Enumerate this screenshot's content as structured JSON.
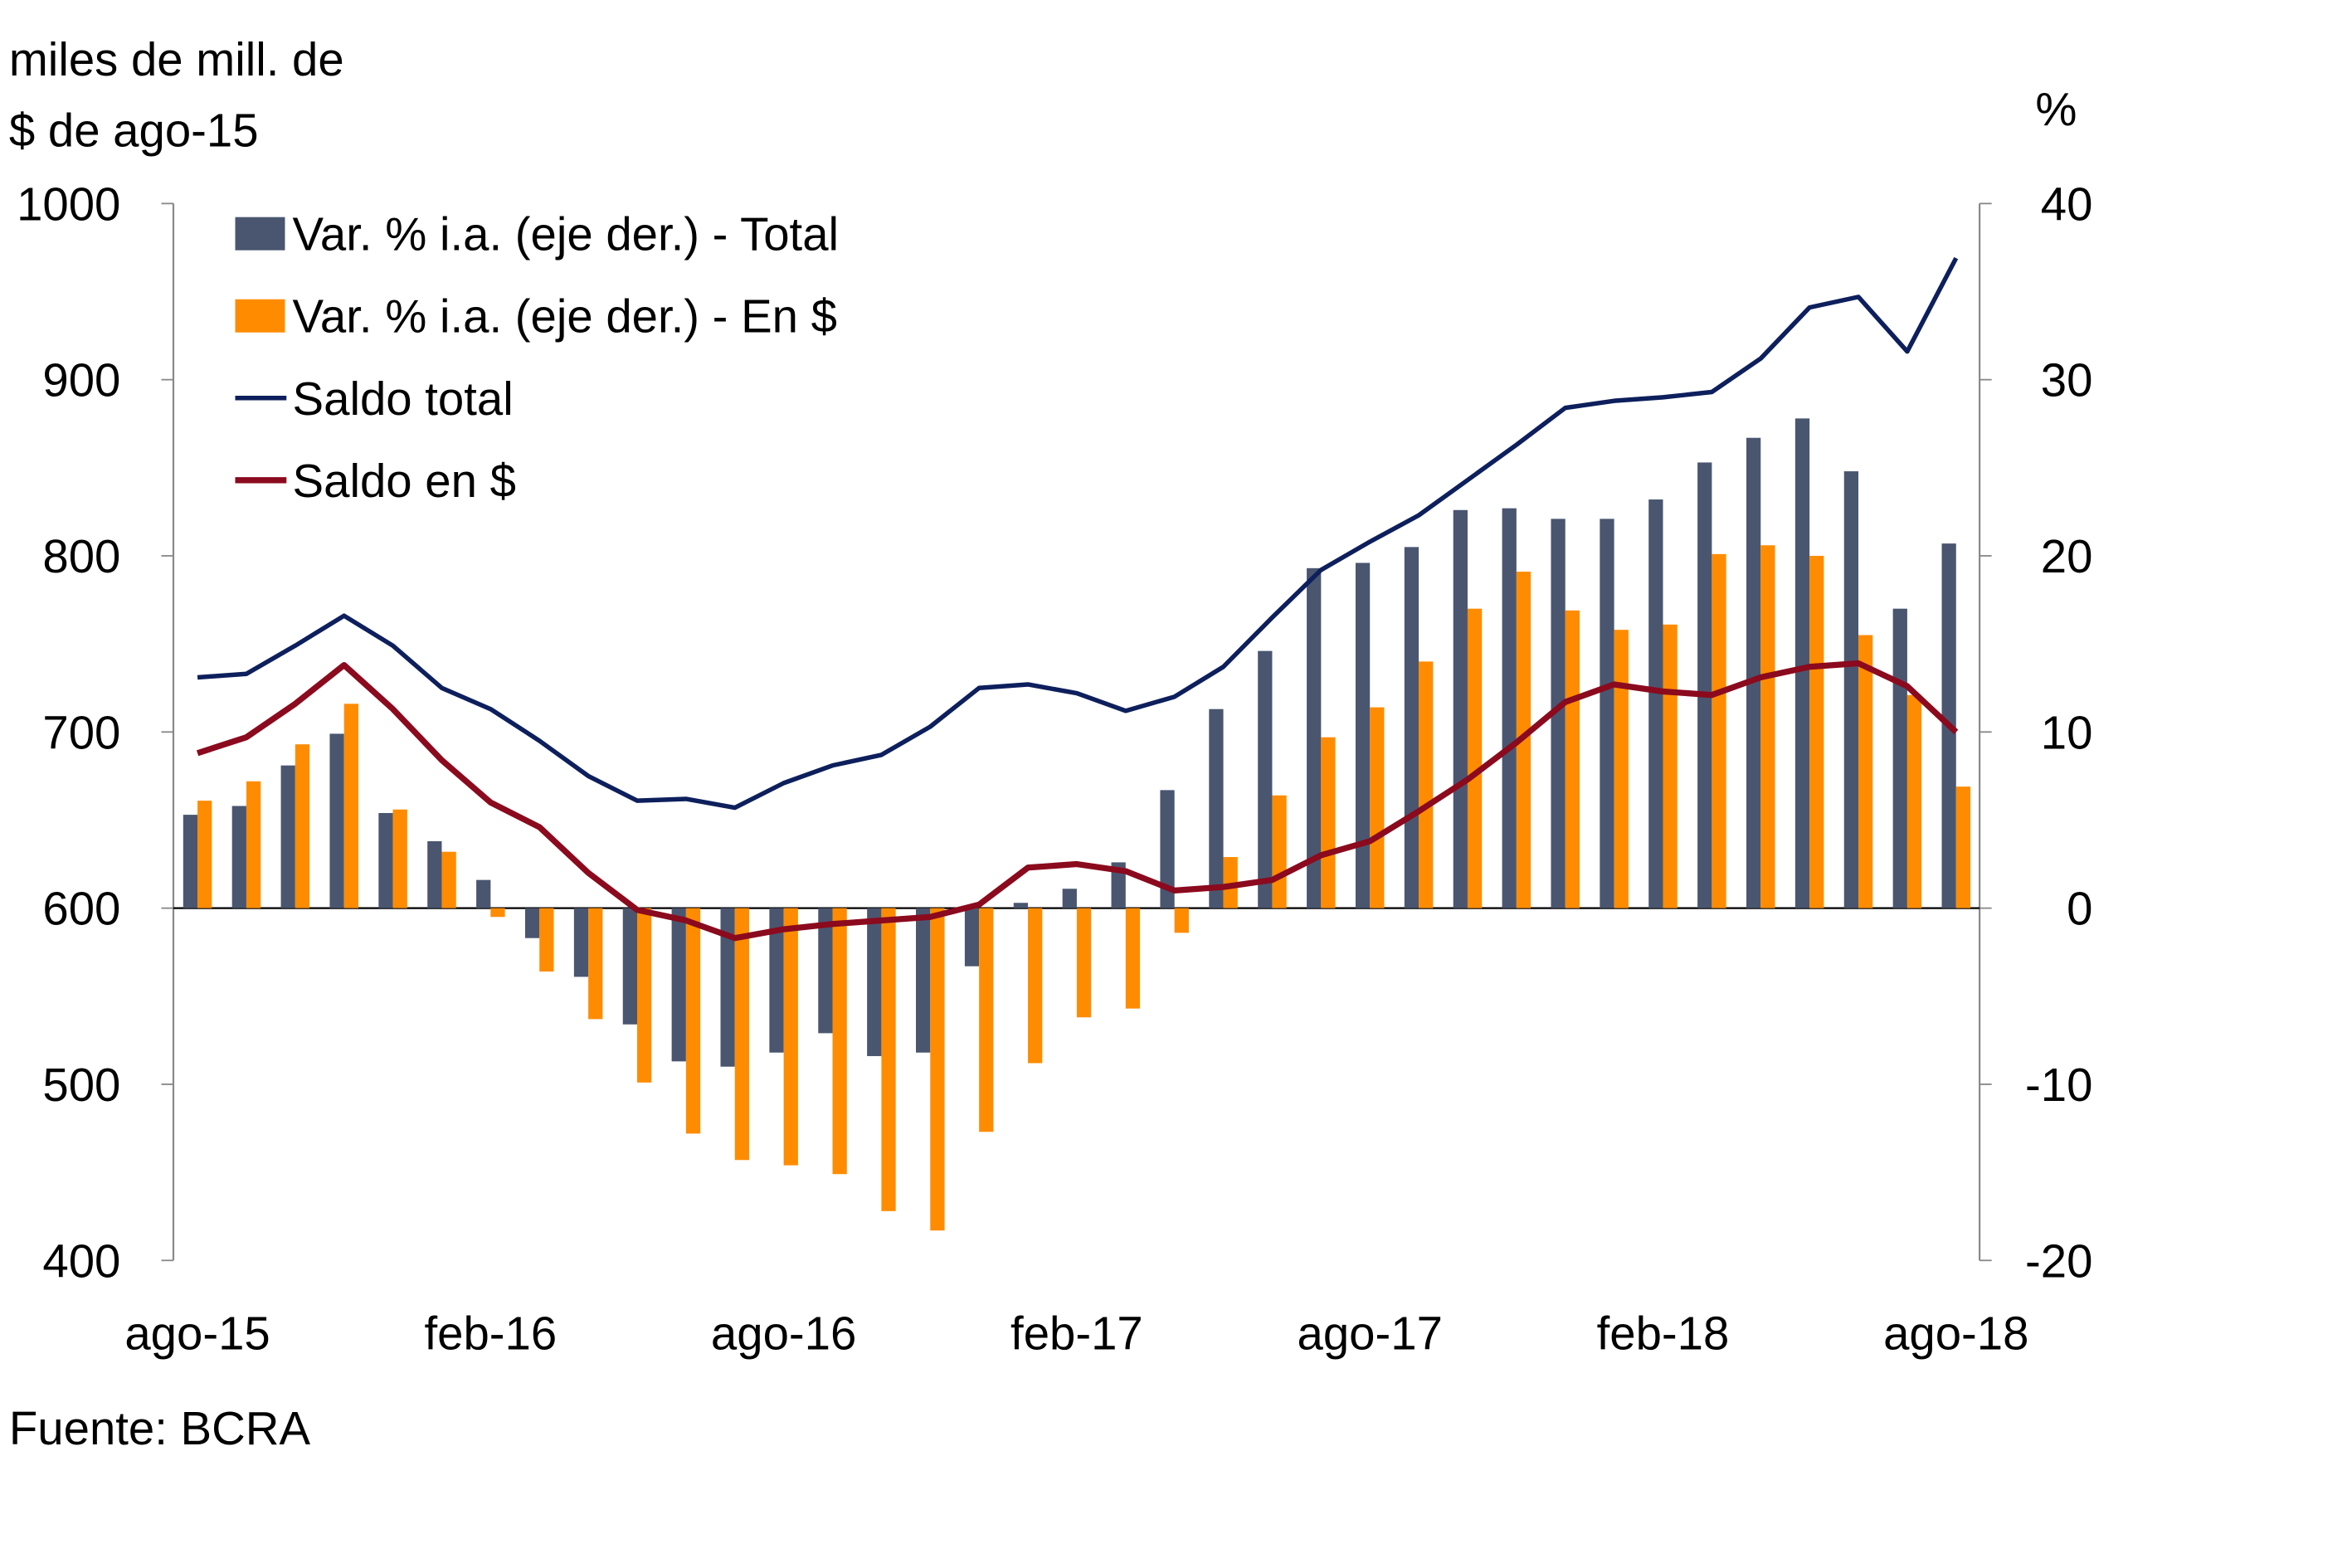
{
  "chart_data": {
    "type": "bar+line",
    "left_axis_title_line1": "miles de mill. de",
    "left_axis_title_line2": "$ de ago-15",
    "right_axis_title": "%",
    "source": "Fuente: BCRA",
    "left_ylim": [
      400,
      1000
    ],
    "left_ticks": [
      "1000",
      "900",
      "800",
      "700",
      "600",
      "500",
      "400"
    ],
    "right_ylim": [
      -20,
      40
    ],
    "right_ticks": [
      "40",
      "30",
      "20",
      "10",
      "0",
      "-10",
      "-20"
    ],
    "x_tick_labels": [
      "ago-15",
      "feb-16",
      "ago-16",
      "feb-17",
      "ago-17",
      "feb-18",
      "ago-18"
    ],
    "months": [
      "ago-15",
      "sep-15",
      "oct-15",
      "nov-15",
      "dic-15",
      "ene-16",
      "feb-16",
      "mar-16",
      "abr-16",
      "may-16",
      "jun-16",
      "jul-16",
      "ago-16",
      "sep-16",
      "oct-16",
      "nov-16",
      "dic-16",
      "ene-17",
      "feb-17",
      "mar-17",
      "abr-17",
      "may-17",
      "jun-17",
      "jul-17",
      "ago-17",
      "sep-17",
      "oct-17",
      "nov-17",
      "dic-17",
      "ene-18",
      "feb-18",
      "mar-18",
      "abr-18",
      "may-18",
      "jun-18",
      "jul-18",
      "ago-18"
    ],
    "legend_position": "top-left",
    "grid": false,
    "series": [
      {
        "name": "Var. % i.a. (eje der.) - Total",
        "kind": "bar",
        "axis": "right",
        "color": "#4a5670",
        "values": [
          5.3,
          5.8,
          8.1,
          9.9,
          5.4,
          3.8,
          1.6,
          -1.7,
          -3.9,
          -6.6,
          -8.7,
          -9.0,
          -8.2,
          -7.1,
          -8.4,
          -8.2,
          -3.3,
          0.3,
          1.1,
          2.6,
          6.7,
          11.3,
          14.6,
          19.3,
          19.6,
          20.5,
          22.6,
          22.7,
          22.1,
          22.1,
          23.2,
          25.3,
          26.7,
          27.8,
          24.8,
          17.0,
          20.7
        ]
      },
      {
        "name": "Var. % i.a. (eje der.) - En $",
        "kind": "bar",
        "axis": "right",
        "color": "#ff8c00",
        "values": [
          6.1,
          7.2,
          9.3,
          11.6,
          5.6,
          3.2,
          -0.5,
          -3.6,
          -6.3,
          -9.9,
          -12.8,
          -14.3,
          -14.6,
          -15.1,
          -17.2,
          -18.3,
          -12.7,
          -8.8,
          -6.2,
          -5.7,
          -1.4,
          2.9,
          6.4,
          9.7,
          11.4,
          14.0,
          17.0,
          19.1,
          16.9,
          15.8,
          16.1,
          20.1,
          20.6,
          20.0,
          15.5,
          12.1,
          6.9
        ]
      },
      {
        "name": "Saldo total",
        "kind": "line",
        "axis": "left",
        "color": "#0d1f5c",
        "values": [
          731,
          733,
          749,
          766,
          749,
          725,
          713,
          695,
          675,
          661,
          662,
          657,
          671,
          681,
          687,
          703,
          725,
          727,
          722,
          712,
          720,
          737,
          765,
          792,
          808,
          823,
          843,
          863,
          884,
          888,
          890,
          893,
          912,
          941,
          947,
          916,
          969
        ]
      },
      {
        "name": "Saldo en $",
        "kind": "line",
        "axis": "left",
        "color": "#8b0a1e",
        "values": [
          688,
          697,
          716,
          738,
          713,
          684,
          660,
          646,
          620,
          599,
          593,
          583,
          588,
          591,
          593,
          595,
          602,
          623,
          625,
          621,
          610,
          612,
          616,
          630,
          638,
          655,
          673,
          694,
          717,
          727,
          723,
          721,
          731,
          737,
          739,
          726,
          700
        ]
      }
    ]
  }
}
